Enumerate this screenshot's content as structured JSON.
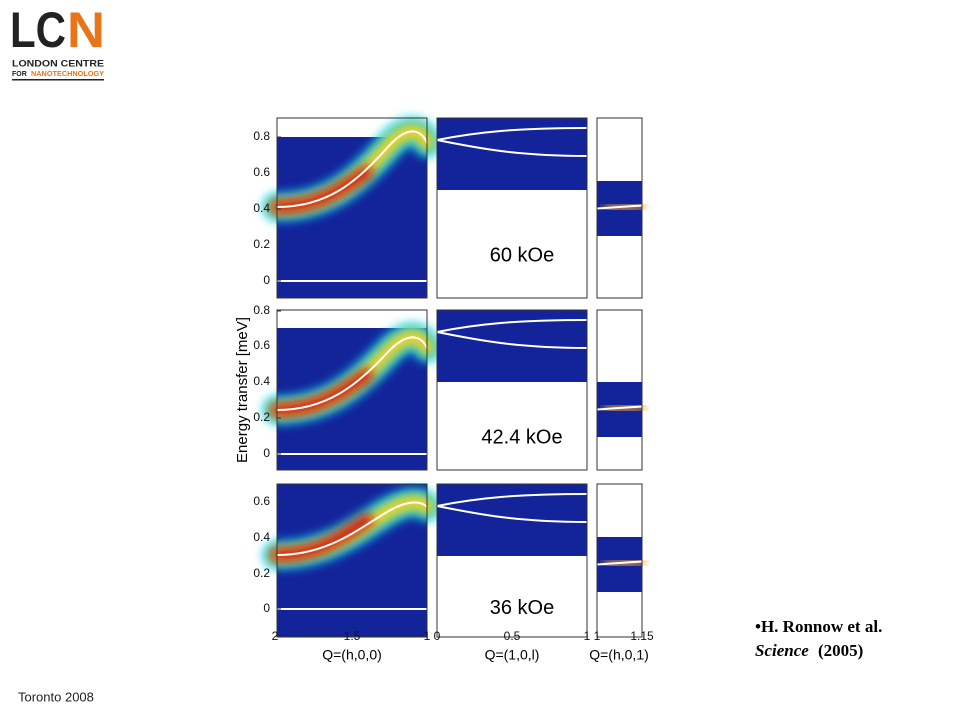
{
  "logo": {
    "mark_dark": "LC",
    "mark_accent": "N",
    "line1": "LONDON CENTRE",
    "line2_dark": "FOR",
    "line2_accent": "NANOTECHNOLOGY"
  },
  "figure": {
    "y_label": "Energy transfer [meV]",
    "rows": [
      {
        "field": "60 kOe",
        "yticks": [
          "0.8",
          "0.6",
          "0.4",
          "0.2",
          "0"
        ]
      },
      {
        "field": "42.4 kOe",
        "yticks": [
          "0.8",
          "0.6",
          "0.4",
          "0.2",
          "0"
        ]
      },
      {
        "field": "36 kOe",
        "yticks": [
          "0.6",
          "0.4",
          "0.2",
          "0"
        ]
      }
    ],
    "columns": [
      {
        "label": "Q=(h,0,0)",
        "ticks": [
          "2",
          "1.5",
          "1"
        ]
      },
      {
        "label": "Q=(1,0,l)",
        "ticks": [
          "0",
          "0.5",
          "1"
        ]
      },
      {
        "label": "Q=(h,0,1)",
        "ticks": [
          "1",
          "1.15"
        ]
      }
    ]
  },
  "citation": {
    "authors": "•H. Ronnow et al.",
    "journal": "Science",
    "year": "(2005)"
  },
  "footer": "Toronto 2008"
}
